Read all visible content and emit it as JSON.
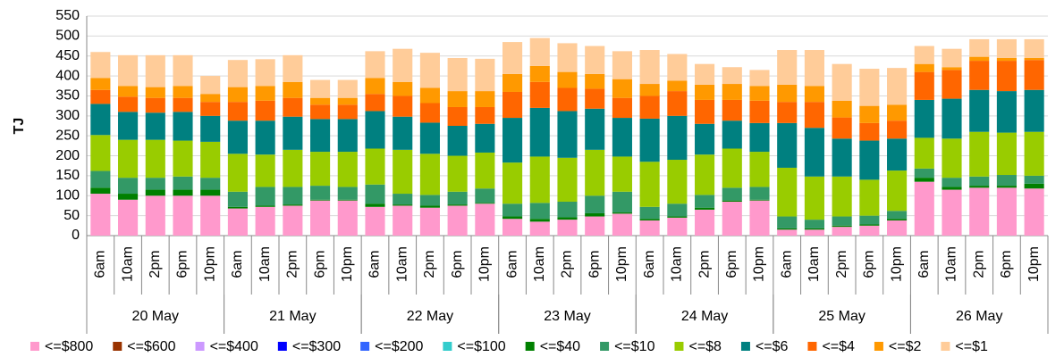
{
  "chart_data": {
    "type": "stacked_bar",
    "y_label": "TJ",
    "ylim": [
      0,
      550
    ],
    "yticks": [
      0,
      50,
      100,
      150,
      200,
      250,
      300,
      350,
      400,
      450,
      500,
      550
    ],
    "grid": true,
    "legend": "bottom",
    "categories": [
      "6am",
      "10am",
      "2pm",
      "6pm",
      "10pm",
      "6am",
      "10am",
      "2pm",
      "6pm",
      "10pm",
      "6am",
      "10am",
      "2pm",
      "6pm",
      "10pm",
      "6am",
      "10am",
      "2pm",
      "6pm",
      "10pm",
      "6am",
      "10am",
      "2pm",
      "6pm",
      "10pm",
      "6am",
      "10am",
      "2pm",
      "6pm",
      "10pm",
      "6am",
      "10am",
      "2pm",
      "6pm",
      "10pm"
    ],
    "groups": [
      "20 May",
      "21 May",
      "22 May",
      "23 May",
      "24 May",
      "25 May",
      "26 May"
    ],
    "series": [
      {
        "name": "<=$800",
        "color": "#ff99cc",
        "values": [
          105,
          90,
          100,
          100,
          100,
          68,
          72,
          75,
          88,
          88,
          72,
          75,
          70,
          75,
          80,
          42,
          35,
          40,
          48,
          55,
          38,
          45,
          65,
          85,
          88,
          15,
          15,
          22,
          25,
          38,
          135,
          115,
          120,
          120,
          118
        ]
      },
      {
        "name": "<=$600",
        "color": "#993300",
        "values": [
          0,
          0,
          0,
          0,
          0,
          0,
          0,
          0,
          0,
          0,
          0,
          0,
          0,
          0,
          0,
          0,
          0,
          0,
          0,
          0,
          0,
          0,
          0,
          0,
          0,
          0,
          0,
          0,
          0,
          0,
          0,
          0,
          0,
          0,
          0
        ]
      },
      {
        "name": "<=$400",
        "color": "#cc99ff",
        "values": [
          0,
          0,
          0,
          0,
          0,
          0,
          0,
          0,
          0,
          0,
          0,
          0,
          0,
          0,
          0,
          0,
          0,
          0,
          0,
          0,
          0,
          0,
          0,
          0,
          0,
          0,
          0,
          0,
          0,
          0,
          0,
          0,
          0,
          0,
          0
        ]
      },
      {
        "name": "<=$300",
        "color": "#0000ff",
        "values": [
          0,
          0,
          0,
          0,
          0,
          0,
          0,
          0,
          0,
          0,
          0,
          0,
          0,
          0,
          0,
          0,
          0,
          0,
          0,
          0,
          0,
          0,
          0,
          0,
          0,
          0,
          0,
          0,
          0,
          0,
          0,
          0,
          0,
          0,
          0
        ]
      },
      {
        "name": "<=$200",
        "color": "#3366ff",
        "values": [
          0,
          0,
          0,
          0,
          0,
          0,
          0,
          0,
          0,
          0,
          0,
          0,
          0,
          0,
          0,
          0,
          0,
          0,
          0,
          0,
          0,
          0,
          0,
          0,
          0,
          0,
          0,
          0,
          0,
          0,
          0,
          0,
          0,
          0,
          0
        ]
      },
      {
        "name": "<=$100",
        "color": "#33cccc",
        "values": [
          0,
          0,
          0,
          0,
          0,
          0,
          0,
          0,
          0,
          0,
          0,
          0,
          0,
          0,
          0,
          0,
          0,
          0,
          0,
          0,
          0,
          0,
          0,
          0,
          0,
          0,
          0,
          0,
          0,
          0,
          0,
          0,
          0,
          0,
          0
        ]
      },
      {
        "name": "<=$40",
        "color": "#008000",
        "values": [
          15,
          15,
          15,
          15,
          15,
          4,
          3,
          3,
          2,
          2,
          8,
          3,
          5,
          3,
          2,
          6,
          7,
          6,
          8,
          3,
          4,
          3,
          5,
          3,
          2,
          3,
          3,
          3,
          3,
          4,
          10,
          7,
          5,
          5,
          12
        ]
      },
      {
        "name": "<=$10",
        "color": "#339966",
        "values": [
          42,
          40,
          30,
          33,
          30,
          38,
          47,
          44,
          35,
          32,
          48,
          27,
          27,
          32,
          36,
          32,
          40,
          39,
          44,
          52,
          30,
          32,
          32,
          32,
          32,
          30,
          22,
          23,
          22,
          20,
          23,
          23,
          23,
          27,
          20
        ]
      },
      {
        "name": "<=$8",
        "color": "#99cc00",
        "values": [
          90,
          95,
          95,
          90,
          90,
          95,
          81,
          93,
          85,
          88,
          90,
          110,
          103,
          90,
          90,
          103,
          116,
          110,
          115,
          88,
          113,
          110,
          101,
          98,
          88,
          122,
          108,
          100,
          90,
          101,
          77,
          98,
          112,
          106,
          110
        ]
      },
      {
        "name": "<=$6",
        "color": "#008080",
        "values": [
          78,
          70,
          68,
          72,
          65,
          83,
          85,
          83,
          82,
          82,
          94,
          83,
          78,
          75,
          72,
          112,
          122,
          117,
          103,
          97,
          108,
          110,
          77,
          70,
          72,
          112,
          122,
          95,
          98,
          80,
          95,
          100,
          105,
          104,
          105
        ]
      },
      {
        "name": "<=$4",
        "color": "#ff6600",
        "values": [
          35,
          38,
          37,
          35,
          35,
          47,
          50,
          47,
          36,
          36,
          43,
          52,
          49,
          47,
          42,
          65,
          65,
          58,
          50,
          50,
          57,
          62,
          60,
          52,
          56,
          53,
          65,
          53,
          44,
          45,
          70,
          72,
          73,
          76,
          75
        ]
      },
      {
        "name": "<=$2",
        "color": "#ff9900",
        "values": [
          30,
          27,
          27,
          30,
          20,
          37,
          37,
          40,
          17,
          17,
          40,
          35,
          38,
          40,
          40,
          45,
          40,
          40,
          37,
          47,
          30,
          26,
          38,
          40,
          37,
          43,
          40,
          42,
          43,
          40,
          20,
          7,
          10,
          7,
          5
        ]
      },
      {
        "name": "<=$1",
        "color": "#ffcc99",
        "values": [
          65,
          77,
          80,
          77,
          45,
          68,
          67,
          67,
          45,
          45,
          67,
          83,
          88,
          83,
          81,
          80,
          70,
          72,
          70,
          70,
          85,
          67,
          52,
          42,
          40,
          87,
          90,
          92,
          93,
          92,
          45,
          46,
          44,
          47,
          47
        ]
      }
    ]
  }
}
